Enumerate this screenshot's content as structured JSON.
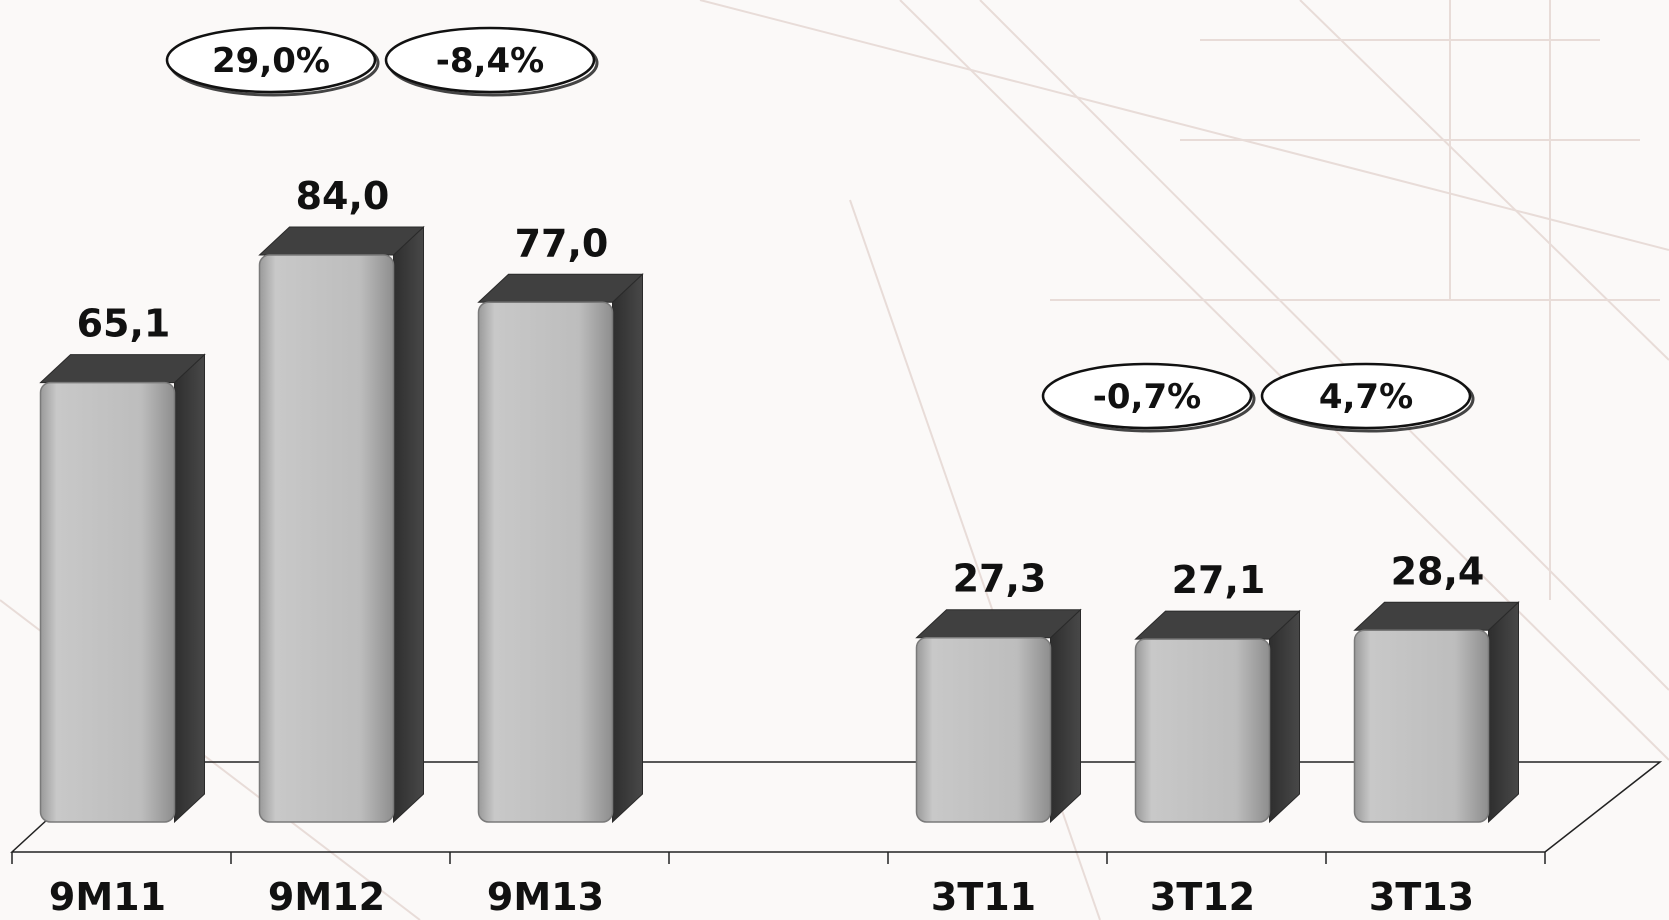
{
  "chart_data": {
    "type": "bar",
    "title": "",
    "xlabel": "",
    "ylabel": "",
    "categories": [
      "9M11",
      "9M12",
      "9M13",
      "",
      "3T11",
      "3T12",
      "3T13"
    ],
    "values": [
      65.1,
      84.0,
      77.0,
      null,
      27.3,
      27.1,
      28.4
    ],
    "data_labels": [
      "65,1",
      "84,0",
      "77,0",
      "",
      "27,3",
      "27,1",
      "28,4"
    ],
    "ylim": [
      0,
      90
    ],
    "grid": false,
    "legend": "none",
    "annotations": [
      {
        "text": "29,0%",
        "between": [
          "9M11",
          "9M12"
        ]
      },
      {
        "text": "-8,4%",
        "between": [
          "9M12",
          "9M13"
        ]
      },
      {
        "text": "-0,7%",
        "between": [
          "3T11",
          "3T12"
        ]
      },
      {
        "text": "4,7%",
        "between": [
          "3T12",
          "3T13"
        ]
      }
    ]
  },
  "colors": {
    "bar_front": "#bdbdbd",
    "bar_side": "#404040",
    "bar_outline": "#7a7a7a",
    "text": "#111111",
    "floor_line": "#222222",
    "background": "#fbf9f8"
  }
}
